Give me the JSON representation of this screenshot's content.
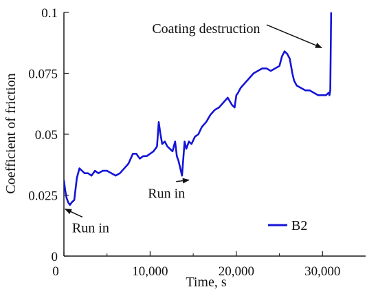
{
  "colors": {
    "series": "#1414d8",
    "axis": "#1a1a1a",
    "annotation": "#111111"
  },
  "chart_data": {
    "type": "line",
    "title": "",
    "xlabel": "Time, s",
    "ylabel": "Coefficient of friction",
    "xlim": [
      0,
      35000
    ],
    "ylim": [
      0,
      0.1
    ],
    "x_ticks": [
      0,
      10000,
      20000,
      30000
    ],
    "x_tick_labels": [
      "0",
      "10,000",
      "20,000",
      "30,000"
    ],
    "y_ticks": [
      0,
      0.025,
      0.05,
      0.075,
      0.1
    ],
    "y_tick_labels": [
      "0",
      "0.025",
      "0.05",
      "0.075",
      "0.1"
    ],
    "grid": false,
    "legend": {
      "position": "bottom-right",
      "entries": [
        "B2"
      ]
    },
    "series": [
      {
        "name": "B2",
        "x": [
          0,
          150,
          300,
          500,
          700,
          900,
          1200,
          1500,
          1800,
          2100,
          2400,
          2800,
          3200,
          3600,
          4000,
          4500,
          5000,
          5500,
          6000,
          6500,
          7000,
          7500,
          8000,
          8400,
          8800,
          9200,
          9600,
          10000,
          10400,
          10800,
          11000,
          11200,
          11400,
          11700,
          12000,
          12300,
          12600,
          12900,
          13100,
          13300,
          13500,
          13700,
          13850,
          14000,
          14200,
          14500,
          14800,
          15200,
          15600,
          16000,
          16500,
          17000,
          17500,
          18000,
          18500,
          19000,
          19500,
          19800,
          20000,
          20200,
          20500,
          21000,
          21500,
          22000,
          22500,
          23000,
          23500,
          24000,
          24500,
          25000,
          25300,
          25600,
          25900,
          26200,
          26500,
          26700,
          27000,
          27500,
          28000,
          28500,
          29000,
          29500,
          30000,
          30400,
          30700,
          30800,
          30900,
          31000,
          31100
        ],
        "y": [
          0.031,
          0.027,
          0.024,
          0.022,
          0.021,
          0.022,
          0.023,
          0.032,
          0.036,
          0.035,
          0.034,
          0.034,
          0.033,
          0.035,
          0.034,
          0.035,
          0.035,
          0.034,
          0.033,
          0.034,
          0.036,
          0.038,
          0.042,
          0.042,
          0.04,
          0.041,
          0.041,
          0.042,
          0.043,
          0.045,
          0.055,
          0.05,
          0.046,
          0.047,
          0.045,
          0.044,
          0.043,
          0.047,
          0.041,
          0.039,
          0.036,
          0.033,
          0.04,
          0.047,
          0.044,
          0.047,
          0.046,
          0.049,
          0.05,
          0.053,
          0.055,
          0.058,
          0.06,
          0.061,
          0.063,
          0.065,
          0.062,
          0.061,
          0.066,
          0.067,
          0.069,
          0.071,
          0.073,
          0.075,
          0.076,
          0.077,
          0.077,
          0.076,
          0.077,
          0.078,
          0.082,
          0.084,
          0.083,
          0.081,
          0.075,
          0.072,
          0.07,
          0.069,
          0.068,
          0.068,
          0.067,
          0.066,
          0.066,
          0.066,
          0.067,
          0.066,
          0.068,
          0.1,
          0.103
        ]
      }
    ],
    "annotations": [
      {
        "text": "Coating destruction",
        "x": 16500,
        "y": 0.0915,
        "arrow_to": [
          29900,
          0.0855
        ]
      },
      {
        "text": "Run in",
        "x": 3100,
        "y": 0.0098,
        "arrow_to": [
          150,
          0.0193
        ]
      },
      {
        "text": "Run in",
        "x": 11900,
        "y": 0.0238,
        "arrow_to": [
          14500,
          0.0312
        ]
      }
    ]
  }
}
